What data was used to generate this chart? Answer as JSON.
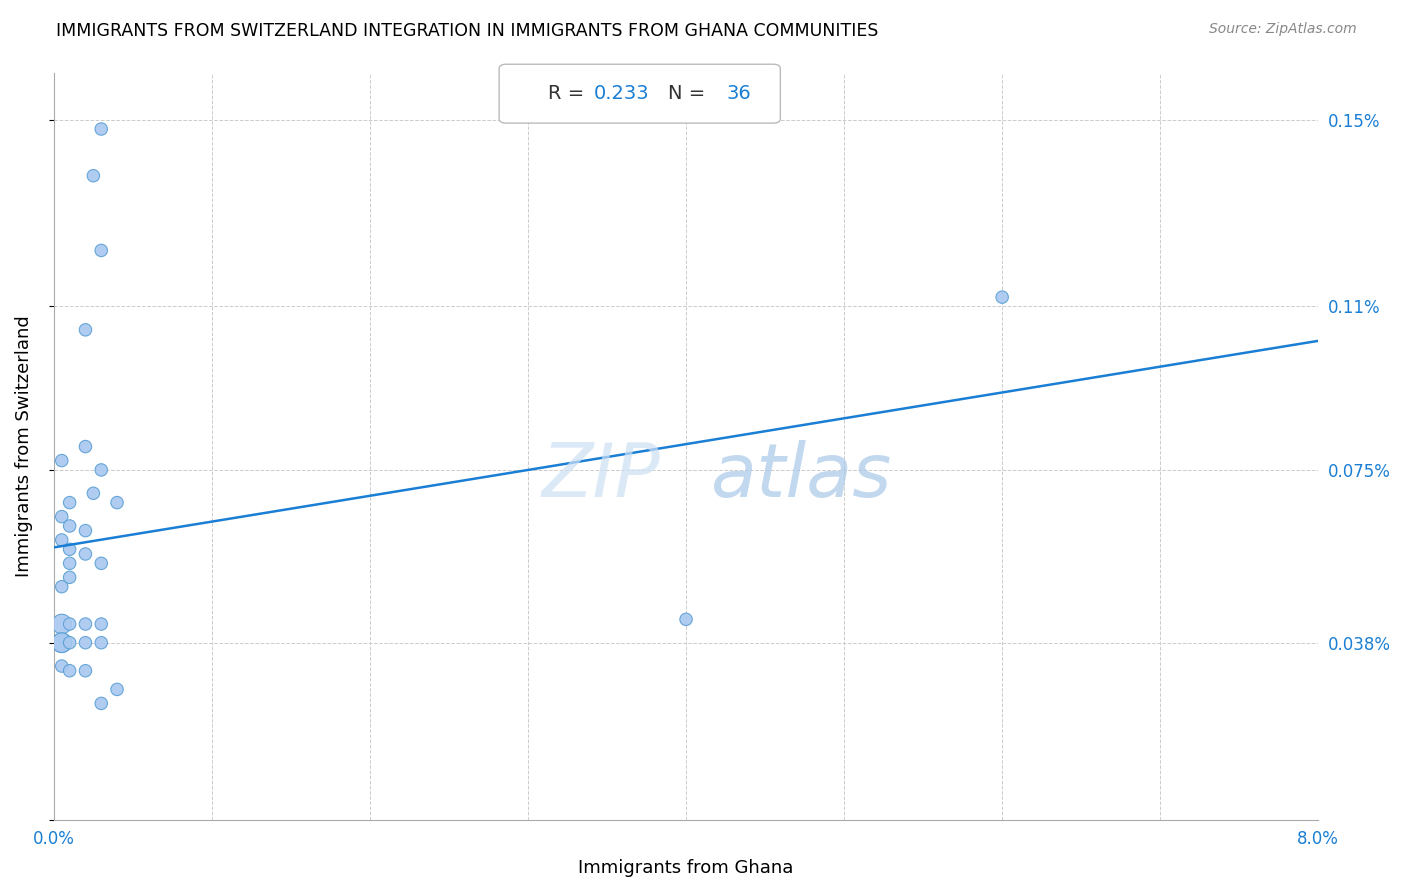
{
  "title": "IMMIGRANTS FROM SWITZERLAND INTEGRATION IN IMMIGRANTS FROM GHANA COMMUNITIES",
  "source": "Source: ZipAtlas.com",
  "xlabel": "Immigrants from Ghana",
  "ylabel": "Immigrants from Switzerland",
  "R": 0.233,
  "N": 36,
  "x_ticks": [
    0.0,
    0.01,
    0.02,
    0.03,
    0.04,
    0.05,
    0.06,
    0.07,
    0.08
  ],
  "y_ticks": [
    0.0,
    0.038,
    0.075,
    0.11,
    0.15
  ],
  "y_tick_labels_right": [
    "",
    "0.038%",
    "0.075%",
    "0.11%",
    "0.15%"
  ],
  "xlim": [
    0.0,
    0.08
  ],
  "ylim": [
    0.0,
    0.16
  ],
  "regression_color": "#1a7fd4",
  "scatter_color": "#a8c8f0",
  "scatter_edge_color": "#5a9fd4",
  "watermark_zip": "ZIP",
  "watermark_atlas": "atlas",
  "grid_color": "#cccccc",
  "background_color": "#ffffff",
  "scatter_points": [
    [
      0.0005,
      0.077
    ],
    [
      0.0005,
      0.065
    ],
    [
      0.0005,
      0.06
    ],
    [
      0.0005,
      0.05
    ],
    [
      0.0005,
      0.042
    ],
    [
      0.0005,
      0.038
    ],
    [
      0.0005,
      0.038
    ],
    [
      0.0005,
      0.033
    ],
    [
      0.001,
      0.068
    ],
    [
      0.001,
      0.063
    ],
    [
      0.001,
      0.058
    ],
    [
      0.001,
      0.055
    ],
    [
      0.001,
      0.052
    ],
    [
      0.001,
      0.042
    ],
    [
      0.001,
      0.038
    ],
    [
      0.001,
      0.032
    ],
    [
      0.002,
      0.105
    ],
    [
      0.002,
      0.08
    ],
    [
      0.002,
      0.062
    ],
    [
      0.002,
      0.057
    ],
    [
      0.002,
      0.042
    ],
    [
      0.002,
      0.038
    ],
    [
      0.002,
      0.032
    ],
    [
      0.0025,
      0.138
    ],
    [
      0.0025,
      0.07
    ],
    [
      0.003,
      0.148
    ],
    [
      0.003,
      0.122
    ],
    [
      0.003,
      0.075
    ],
    [
      0.003,
      0.055
    ],
    [
      0.003,
      0.042
    ],
    [
      0.003,
      0.038
    ],
    [
      0.003,
      0.025
    ],
    [
      0.004,
      0.068
    ],
    [
      0.004,
      0.028
    ],
    [
      0.04,
      0.043
    ],
    [
      0.06,
      0.112
    ]
  ],
  "scatter_sizes": [
    80,
    80,
    80,
    80,
    200,
    200,
    200,
    80,
    80,
    80,
    80,
    80,
    80,
    80,
    80,
    80,
    80,
    80,
    80,
    80,
    80,
    80,
    80,
    80,
    80,
    80,
    80,
    80,
    80,
    80,
    80,
    80,
    80,
    80,
    80,
    80
  ]
}
